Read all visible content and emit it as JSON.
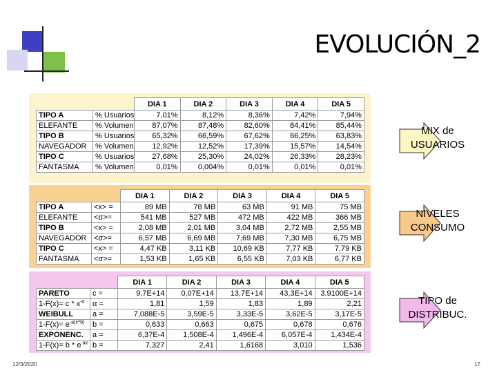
{
  "title": "EVOLUCIÓN_2",
  "tables": [
    {
      "columns": [
        "DIA 1",
        "DIA 2",
        "DIA 3",
        "DIA 4",
        "DIA 5"
      ],
      "rows": [
        [
          "TIPO A",
          "% Usuarios",
          "7,01%",
          "8,12%",
          "8,36%",
          "7,42%",
          "7,94%"
        ],
        [
          "ELEFANTE",
          "% Volumen",
          "87,07%",
          "87,48%",
          "82,60%",
          "84,41%",
          "85,44%"
        ],
        [
          "TIPO B",
          "% Usuarios",
          "65,32%",
          "66,59%",
          "67,62%",
          "66,25%",
          "63,83%"
        ],
        [
          "NAVEGADOR",
          "% Volumen",
          "12,92%",
          "12,52%",
          "17,39%",
          "15,57%",
          "14,54%"
        ],
        [
          "TIPO C",
          "% Usuarios",
          "27,68%",
          "25,30%",
          "24,02%",
          "26,33%",
          "28,23%"
        ],
        [
          "FANTASMA",
          "% Volumen",
          "0,01%",
          "0,004%",
          "0,01%",
          "0,01%",
          "0,01%"
        ]
      ]
    },
    {
      "columns": [
        "DIA 1",
        "DIA 2",
        "DIA 3",
        "DIA 4",
        "DIA 5"
      ],
      "rows": [
        [
          "TIPO A",
          "<x> =",
          "89 MB",
          "78 MB",
          "63 MB",
          "91 MB",
          "75 MB"
        ],
        [
          "ELEFANTE",
          "<σ>=",
          "541 MB",
          "527 MB",
          "472 MB",
          "422 MB",
          "366 MB"
        ],
        [
          "TIPO B",
          "<x> =",
          "2,08 MB",
          "2,01 MB",
          "3,04 MB",
          "2,72 MB",
          "2,55 MB"
        ],
        [
          "NAVEGADOR",
          "<σ>=",
          "6,57 MB",
          "6,69 MB",
          "7,69 MB",
          "7,30 MB",
          "6,75 MB"
        ],
        [
          "TIPO C",
          "<x> =",
          "4,47 KB",
          "3,11 KB",
          "10,69 KB",
          "7,77 KB",
          "7,79 KB"
        ],
        [
          "FANTASMA",
          "<σ>=",
          "1,53 KB",
          "1,65 KB",
          "6,55 KB",
          "7,03 KB",
          "6,77 KB"
        ]
      ]
    },
    {
      "columns": [
        "DIA 1",
        "DIA 2",
        "DIA 3",
        "DIA 4",
        "DIA 5"
      ],
      "rows": [
        [
          "PARETO",
          "c =",
          "9,7E+14",
          "0,07E+14",
          "13,7E+14",
          "43,3E+14",
          "3.9100E+14"
        ],
        [
          {
            "text": "1-F(x)= c * x",
            "sup": "-α"
          },
          "α =",
          "1,81",
          "1,59",
          "1,83",
          "1,89",
          "2,21"
        ],
        [
          "WEIBULL",
          "a =",
          "7,088E-5",
          "3,59E-5",
          "3,33E-5",
          "3,62E-5",
          "3,17E-5"
        ],
        [
          {
            "text": "1-F(x)= e",
            "sup": "-a(x^b)"
          },
          "b =",
          "0,633",
          "0,663",
          "0,675",
          "0,678",
          "0,676"
        ],
        [
          "EXPONENC.",
          "a =",
          "6,37E-4",
          "1,508E-4",
          "1,496E-4",
          "6,057E-4",
          "1,434E-4"
        ],
        [
          {
            "text": "1-F(x)= b * e",
            "sup": "-ax"
          },
          "b =",
          "7,327",
          "2,41",
          "1,6168",
          "3,010",
          "1,536"
        ]
      ]
    }
  ],
  "side_labels": [
    "MIX de USUARIOS",
    "NIVELES CONSUMO",
    "TIPO de DISTRIBUC."
  ],
  "footer": {
    "date": "12/3/2020",
    "page": "17"
  }
}
